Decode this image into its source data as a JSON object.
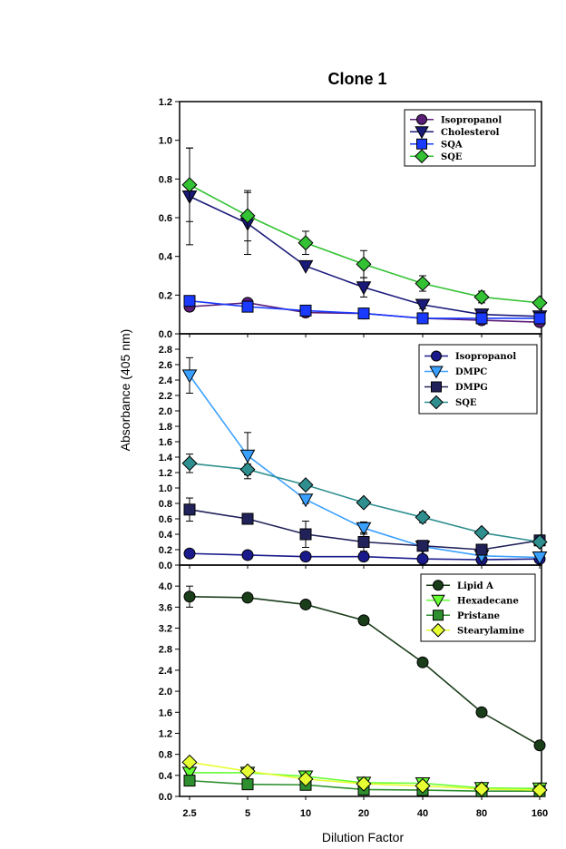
{
  "figure": {
    "title": "Clone 1",
    "xlabel": "Dilution Factor",
    "ylabel": "Absorbance (405 nm)"
  },
  "chart_data": [
    {
      "type": "line",
      "panel": "top",
      "categories": [
        "2.5",
        "5",
        "10",
        "20",
        "40",
        "80",
        "160"
      ],
      "ylim": [
        0,
        1.2
      ],
      "yticks": [
        "0.0",
        "0.2",
        "0.4",
        "0.6",
        "0.8",
        "1.0",
        "1.2"
      ],
      "legend_position": "top-right",
      "series": [
        {
          "name": "Isopropanol",
          "marker": "circle",
          "fill": "#5b1e78",
          "line": "#5b1e78",
          "values": [
            0.14,
            0.16,
            0.11,
            0.105,
            0.08,
            0.07,
            0.06
          ],
          "errors": [
            0.02,
            0.01,
            0.01,
            0.01,
            0.01,
            0.01,
            0.01
          ]
        },
        {
          "name": "Cholesterol",
          "marker": "triangle-down",
          "fill": "#1a1a7a",
          "line": "#1a1a7a",
          "values": [
            0.71,
            0.57,
            0.35,
            0.24,
            0.15,
            0.1,
            0.09
          ],
          "errors": [
            0.25,
            0.16,
            0.01,
            0.05,
            0.02,
            0.01,
            0.01
          ]
        },
        {
          "name": "SQA",
          "marker": "square",
          "fill": "#1a3aff",
          "line": "#1a3aff",
          "values": [
            0.17,
            0.14,
            0.12,
            0.105,
            0.08,
            0.08,
            0.08
          ],
          "errors": [
            0.01,
            0.01,
            0.01,
            0.01,
            0.01,
            0.01,
            0.01
          ]
        },
        {
          "name": "SQE",
          "marker": "diamond",
          "fill": "#33c233",
          "line": "#33c233",
          "values": [
            0.77,
            0.61,
            0.47,
            0.36,
            0.26,
            0.19,
            0.16
          ],
          "errors": [
            0.19,
            0.13,
            0.06,
            0.07,
            0.04,
            0.03,
            0.01
          ]
        }
      ]
    },
    {
      "type": "line",
      "panel": "middle",
      "categories": [
        "2.5",
        "5",
        "10",
        "20",
        "40",
        "80",
        "160"
      ],
      "ylim": [
        0,
        3.0
      ],
      "yticks": [
        "0.0",
        "0.2",
        "0.4",
        "0.6",
        "0.8",
        "1.0",
        "1.2",
        "1.4",
        "1.6",
        "1.8",
        "2.0",
        "2.2",
        "2.4",
        "2.6",
        "2.8"
      ],
      "legend_position": "top-right",
      "series": [
        {
          "name": "Isopropanol",
          "marker": "circle",
          "fill": "#1a1a8c",
          "line": "#1a1a8c",
          "values": [
            0.15,
            0.13,
            0.11,
            0.11,
            0.08,
            0.07,
            0.08
          ],
          "errors": [
            0,
            0,
            0,
            0,
            0,
            0,
            0
          ]
        },
        {
          "name": "DMPC",
          "marker": "triangle-down",
          "fill": "#3aa0ff",
          "line": "#3aa0ff",
          "values": [
            2.46,
            1.42,
            0.85,
            0.48,
            0.24,
            0.12,
            0.1
          ],
          "errors": [
            0.23,
            0.3,
            0.05,
            0.08,
            0.02,
            0.01,
            0.01
          ]
        },
        {
          "name": "DMPG",
          "marker": "square",
          "fill": "#22225a",
          "line": "#22225a",
          "values": [
            0.72,
            0.6,
            0.4,
            0.3,
            0.25,
            0.2,
            0.32
          ],
          "errors": [
            0.15,
            0.04,
            0.17,
            0.12,
            0.03,
            0.02,
            0.02
          ]
        },
        {
          "name": "SQE",
          "marker": "diamond",
          "fill": "#2f8f8f",
          "line": "#2f8f8f",
          "values": [
            1.32,
            1.24,
            1.04,
            0.81,
            0.62,
            0.42,
            0.3
          ],
          "errors": [
            0.12,
            0.07,
            0.04,
            0.03,
            0.07,
            0.03,
            0.02
          ]
        }
      ]
    },
    {
      "type": "line",
      "panel": "bottom",
      "categories": [
        "2.5",
        "5",
        "10",
        "20",
        "40",
        "80",
        "160"
      ],
      "ylim": [
        0,
        4.4
      ],
      "yticks": [
        "0.0",
        "0.4",
        "0.8",
        "1.2",
        "1.6",
        "2.0",
        "2.4",
        "2.8",
        "3.2",
        "3.6",
        "4.0"
      ],
      "legend_position": "top-right",
      "series": [
        {
          "name": "Lipid A",
          "marker": "circle",
          "fill": "#1a3d1a",
          "line": "#1a3d1a",
          "values": [
            3.8,
            3.78,
            3.65,
            3.35,
            2.55,
            1.6,
            0.97
          ],
          "errors": [
            0.2,
            0.07,
            0.02,
            0.02,
            0.02,
            0.08,
            0.02
          ]
        },
        {
          "name": "Hexadecane",
          "marker": "triangle-down",
          "fill": "#66ff33",
          "line": "#66ff33",
          "values": [
            0.45,
            0.45,
            0.38,
            0.26,
            0.25,
            0.16,
            0.15
          ],
          "errors": [
            0.03,
            0.02,
            0.02,
            0.02,
            0.02,
            0.02,
            0.02
          ]
        },
        {
          "name": "Pristane",
          "marker": "square",
          "fill": "#2e8f2e",
          "line": "#2e8f2e",
          "values": [
            0.3,
            0.23,
            0.22,
            0.13,
            0.12,
            0.1,
            0.1
          ],
          "errors": [
            0.02,
            0.02,
            0.02,
            0.02,
            0.02,
            0.02,
            0.02
          ]
        },
        {
          "name": "Stearylamine",
          "marker": "diamond",
          "fill": "#e6ff33",
          "line": "#e6ff33",
          "values": [
            0.65,
            0.48,
            0.33,
            0.24,
            0.2,
            0.14,
            0.12
          ],
          "errors": [
            0.04,
            0.03,
            0.02,
            0.02,
            0.02,
            0.02,
            0.02
          ]
        }
      ]
    }
  ]
}
